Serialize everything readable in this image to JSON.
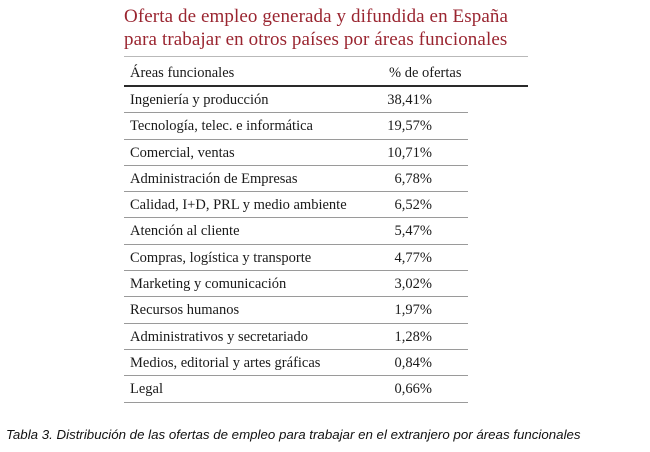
{
  "title": {
    "line1": "Oferta de empleo generada y difundida en España",
    "line2": "para trabajar en otros países por áreas funcionales"
  },
  "table": {
    "headers": {
      "area": "Áreas funcionales",
      "percent": "% de ofertas"
    },
    "rows": [
      {
        "area": "Ingeniería y producción",
        "percent": "38,41%"
      },
      {
        "area": "Tecnología, telec. e informática",
        "percent": "19,57%"
      },
      {
        "area": "Comercial, ventas",
        "percent": "10,71%"
      },
      {
        "area": "Administración de Empresas",
        "percent": "6,78%"
      },
      {
        "area": "Calidad, I+D, PRL y medio ambiente",
        "percent": "6,52%"
      },
      {
        "area": "Atención al cliente",
        "percent": "5,47%"
      },
      {
        "area": "Compras, logística y transporte",
        "percent": "4,77%"
      },
      {
        "area": "Marketing y comunicación",
        "percent": "3,02%"
      },
      {
        "area": "Recursos humanos",
        "percent": "1,97%"
      },
      {
        "area": "Administrativos y secretariado",
        "percent": "1,28%"
      },
      {
        "area": "Medios, editorial y artes gráficas",
        "percent": "0,84%"
      },
      {
        "area": "Legal",
        "percent": "0,66%"
      }
    ]
  },
  "caption": "Tabla 3. Distribución de las ofertas de empleo para trabajar en el extranjero por áreas funcionales"
}
